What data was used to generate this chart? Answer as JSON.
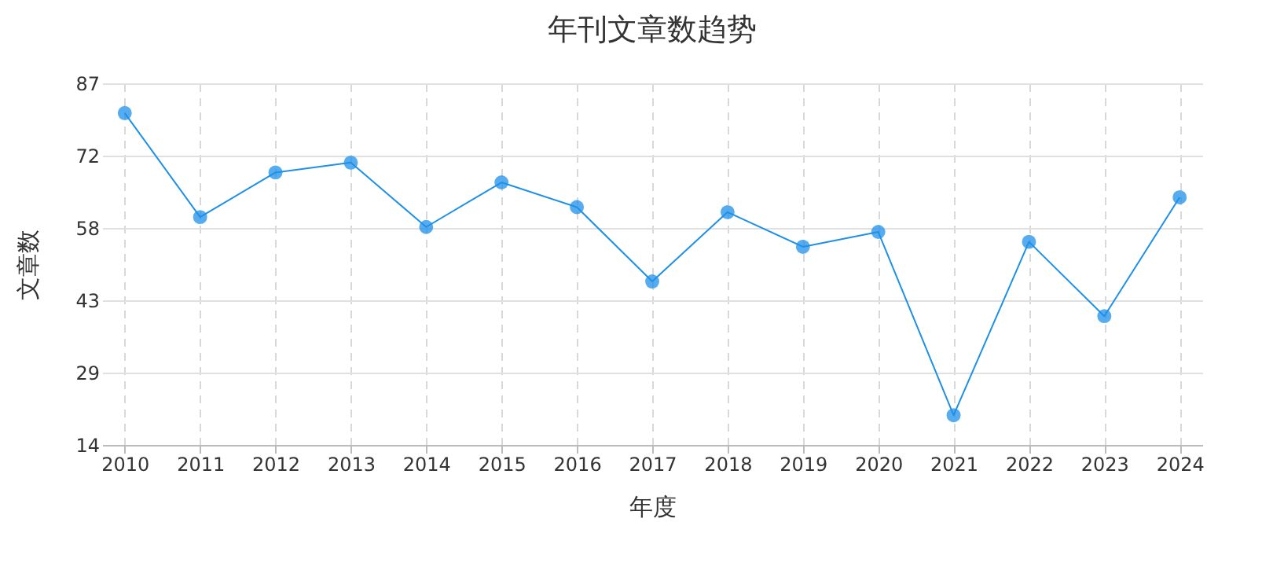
{
  "chart_data": {
    "type": "line",
    "title": "年刊文章数趋势",
    "xlabel": "年度",
    "ylabel": "文章数",
    "categories": [
      "2010",
      "2011",
      "2012",
      "2013",
      "2014",
      "2015",
      "2016",
      "2017",
      "2018",
      "2019",
      "2020",
      "2021",
      "2022",
      "2023",
      "2024"
    ],
    "series": [
      {
        "color": "#1e90e8",
        "values": [
          81,
          60,
          69,
          71,
          58,
          67,
          62,
          47,
          61,
          54,
          57,
          20,
          55,
          40,
          64
        ]
      }
    ],
    "ylim": [
      14,
      87
    ],
    "yticks": [
      14,
      {
        "value": 28.6,
        "label": "29"
      },
      {
        "value": 43.2,
        "label": "43"
      },
      {
        "value": 57.8,
        "label": "58"
      },
      {
        "value": 72.4,
        "label": "72"
      },
      87
    ],
    "grid": true,
    "marker": "circle",
    "line_style": "solid",
    "legend": false
  }
}
